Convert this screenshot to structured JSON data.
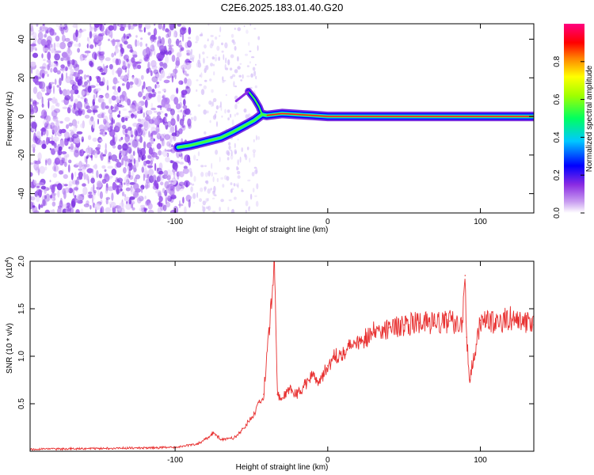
{
  "title": "C2E6.2025.183.01.40.G20",
  "chart_data": [
    {
      "type": "heatmap",
      "xlabel": "Height of straight line (km)",
      "ylabel": "Frequency (Hz)",
      "xlim": [
        -195,
        135
      ],
      "ylim": [
        -50,
        48
      ],
      "xticks": [
        -100,
        0,
        100
      ],
      "yticks": [
        -40,
        -20,
        0,
        20,
        40
      ],
      "colorbar": {
        "label": "Normalized spectral amplitude",
        "range": [
          0,
          1
        ],
        "ticks": [
          0.0,
          0.2,
          0.4,
          0.6,
          0.8
        ]
      },
      "noise_region_x": [
        -195,
        -90
      ],
      "trace": [
        {
          "x": -98,
          "y": -16
        },
        {
          "x": -90,
          "y": -15
        },
        {
          "x": -80,
          "y": -13
        },
        {
          "x": -70,
          "y": -11
        },
        {
          "x": -62,
          "y": -8
        },
        {
          "x": -55,
          "y": -5
        },
        {
          "x": -48,
          "y": -2
        },
        {
          "x": -43,
          "y": 1
        },
        {
          "x": -40,
          "y": 0.5
        },
        {
          "x": -30,
          "y": 1.5
        },
        {
          "x": -20,
          "y": 1
        },
        {
          "x": -10,
          "y": 0.5
        },
        {
          "x": 0,
          "y": 0
        },
        {
          "x": 40,
          "y": 0
        },
        {
          "x": 80,
          "y": 0
        },
        {
          "x": 135,
          "y": 0
        }
      ],
      "branch": [
        {
          "x": -52,
          "y": 13
        },
        {
          "x": -48,
          "y": 9
        },
        {
          "x": -45,
          "y": 5
        },
        {
          "x": -43,
          "y": 1
        },
        {
          "x": -60,
          "y": 8
        }
      ]
    },
    {
      "type": "line",
      "xlabel": "Height of straight line (km)",
      "ylabel": "SNR (10 * v/v)",
      "scale_label": "(x10",
      "scale_exp": "4",
      "scale_close": ")",
      "xlim": [
        -195,
        135
      ],
      "ylim": [
        0,
        2.0
      ],
      "xticks": [
        -100,
        0,
        100
      ],
      "yticks": [
        0.5,
        1.0,
        1.5,
        2.0
      ],
      "ytick_labels": [
        "0.5",
        "1.0",
        "1.5",
        "2.0"
      ],
      "color": "#e83030",
      "series": [
        {
          "x": [
            -195,
            -150,
            -100,
            -85,
            -78,
            -75,
            -70,
            -60,
            -50,
            -42,
            -38,
            -35,
            -33,
            -30,
            -25,
            -20,
            -15,
            -10,
            -5,
            0,
            5,
            10,
            15,
            20,
            25,
            30,
            40,
            50,
            60,
            70,
            80,
            88,
            90,
            91,
            93,
            100,
            110,
            120,
            135
          ],
          "values": [
            0.02,
            0.03,
            0.04,
            0.08,
            0.15,
            0.2,
            0.12,
            0.15,
            0.35,
            0.6,
            1.3,
            2.0,
            0.6,
            0.55,
            0.65,
            0.6,
            0.7,
            0.8,
            0.75,
            0.9,
            1.0,
            1.05,
            1.1,
            1.15,
            1.2,
            1.25,
            1.3,
            1.33,
            1.35,
            1.35,
            1.37,
            1.35,
            1.85,
            1.2,
            0.75,
            1.38,
            1.35,
            1.4,
            1.33
          ]
        }
      ]
    }
  ]
}
